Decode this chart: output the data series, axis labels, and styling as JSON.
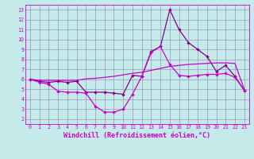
{
  "xlabel": "Windchill (Refroidissement éolien,°C)",
  "xlim": [
    -0.5,
    23.5
  ],
  "ylim": [
    1.5,
    13.5
  ],
  "yticks": [
    2,
    3,
    4,
    5,
    6,
    7,
    8,
    9,
    10,
    11,
    12,
    13
  ],
  "xticks": [
    0,
    1,
    2,
    3,
    4,
    5,
    6,
    7,
    8,
    9,
    10,
    11,
    12,
    13,
    14,
    15,
    16,
    17,
    18,
    19,
    20,
    21,
    22,
    23
  ],
  "bg_color": "#c5eaea",
  "line_color": "#cc00cc",
  "line_color2": "#880088",
  "line1_x": [
    0,
    1,
    2,
    3,
    4,
    5,
    6,
    7,
    8,
    9,
    10,
    11,
    12,
    13,
    14,
    15,
    16,
    17,
    18,
    19,
    20,
    21,
    22,
    23
  ],
  "line1_y": [
    6.0,
    5.9,
    5.9,
    5.9,
    5.9,
    5.9,
    6.05,
    6.1,
    6.2,
    6.3,
    6.45,
    6.6,
    6.7,
    6.9,
    7.1,
    7.3,
    7.4,
    7.5,
    7.55,
    7.6,
    7.65,
    7.65,
    7.6,
    5.0
  ],
  "line2_x": [
    0,
    1,
    2,
    3,
    4,
    5,
    6,
    7,
    8,
    9,
    10,
    11,
    12,
    13,
    14,
    15,
    16,
    17,
    18,
    19,
    20,
    21,
    22,
    23
  ],
  "line2_y": [
    6.0,
    5.8,
    5.7,
    5.8,
    5.7,
    5.8,
    4.7,
    4.7,
    4.7,
    4.6,
    4.5,
    6.4,
    6.3,
    8.8,
    9.3,
    13.0,
    11.0,
    9.7,
    9.0,
    8.3,
    6.8,
    7.4,
    6.3,
    4.9
  ],
  "line3_x": [
    0,
    1,
    2,
    3,
    4,
    5,
    6,
    7,
    8,
    9,
    10,
    11,
    12,
    13,
    14,
    15,
    16,
    17,
    18,
    19,
    20,
    21,
    22,
    23
  ],
  "line3_y": [
    6.0,
    5.7,
    5.5,
    4.8,
    4.7,
    4.7,
    4.6,
    3.3,
    2.7,
    2.7,
    3.0,
    4.5,
    6.3,
    8.7,
    9.3,
    7.5,
    6.4,
    6.3,
    6.4,
    6.5,
    6.5,
    6.6,
    6.2,
    4.9
  ],
  "grid_color": "#9999bb",
  "tick_fontsize": 4.8,
  "xlabel_fontsize": 6.0,
  "grid_linewidth": 0.5
}
